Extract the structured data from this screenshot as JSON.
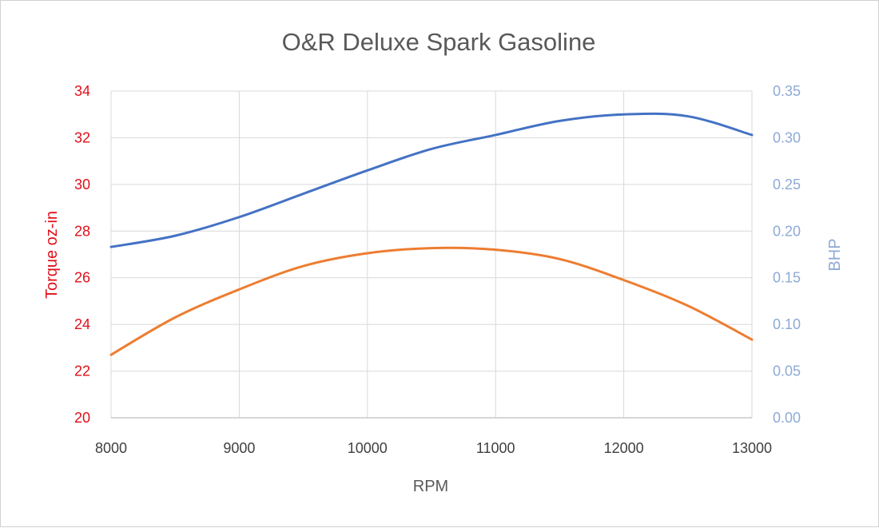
{
  "chart_data": {
    "type": "line",
    "title": "O&R Deluxe Spark Gasoline",
    "xlabel": "RPM",
    "ylabel_left": "Torque oz-in",
    "ylabel_right": "BHP",
    "xlim": [
      8000,
      13000
    ],
    "ylim_left": [
      20,
      34
    ],
    "ylim_right": [
      0,
      0.35
    ],
    "x_ticks": [
      "8000",
      "9000",
      "10000",
      "11000",
      "12000",
      "13000"
    ],
    "y_left_ticks": [
      "20",
      "22",
      "24",
      "26",
      "28",
      "30",
      "32",
      "34"
    ],
    "y_right_ticks": [
      "0.00",
      "0.05",
      "0.10",
      "0.15",
      "0.20",
      "0.25",
      "0.30",
      "0.35"
    ],
    "grid": true,
    "series": [
      {
        "axis": "left",
        "color": "#ed7d31",
        "x": [
          8000,
          8500,
          9000,
          9500,
          10000,
          10500,
          11000,
          11500,
          12000,
          12500,
          13000
        ],
        "values": [
          22.7,
          24.3,
          25.5,
          26.5,
          27.05,
          27.27,
          27.2,
          26.8,
          25.9,
          24.8,
          23.35
        ]
      },
      {
        "axis": "right",
        "color": "#4472c4",
        "x": [
          8000,
          8500,
          9000,
          9500,
          10000,
          10500,
          11000,
          11500,
          12000,
          12500,
          13000
        ],
        "values": [
          0.183,
          0.195,
          0.215,
          0.24,
          0.265,
          0.288,
          0.303,
          0.318,
          0.325,
          0.323,
          0.303
        ]
      }
    ]
  }
}
